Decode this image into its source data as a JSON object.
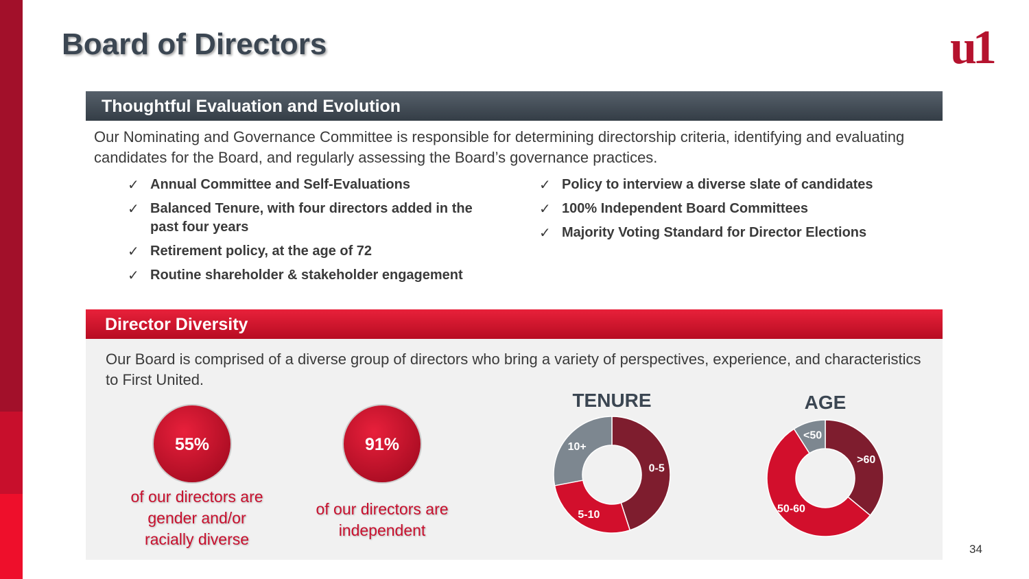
{
  "header": {
    "title": "Board of Directors",
    "logo": "u1"
  },
  "sections": [
    {
      "heading": "Thoughtful Evaluation and Evolution",
      "text": "Our Nominating and Governance Committee is responsible for determining directorship criteria, identifying and evaluating candidates for the Board, and regularly assessing the Board’s governance practices.",
      "bullets_left": [
        "Annual Committee and Self-Evaluations",
        "Balanced Tenure, with four directors added in the past four years",
        "Retirement policy, at the age of 72",
        "Routine shareholder & stakeholder engagement"
      ],
      "bullets_right": [
        "Policy to interview a diverse slate of candidates",
        "100% Independent Board Committees",
        "Majority Voting Standard for Director Elections"
      ]
    },
    {
      "heading": "Director Diversity",
      "text": "Our Board is comprised of a diverse group of directors who bring a variety of perspectives, experience, and characteristics to First United."
    }
  ],
  "stats": [
    {
      "value": "55%",
      "caption": "of our directors are gender and/or racially diverse"
    },
    {
      "value": "91%",
      "caption": "of our directors are independent"
    }
  ],
  "chart_data": [
    {
      "type": "donut",
      "title": "TENURE",
      "categories": [
        "0-5",
        "5-10",
        "10+"
      ],
      "values": [
        45,
        27,
        28
      ],
      "colors": [
        "#7e1d2e",
        "#d20f2c",
        "#7d8790"
      ]
    },
    {
      "type": "donut",
      "title": "AGE",
      "categories": [
        ">60",
        "50-60",
        "<50"
      ],
      "values": [
        36,
        55,
        9
      ],
      "colors": [
        "#7e1d2e",
        "#d20f2c",
        "#7d8790"
      ]
    }
  ],
  "page_number": "34"
}
